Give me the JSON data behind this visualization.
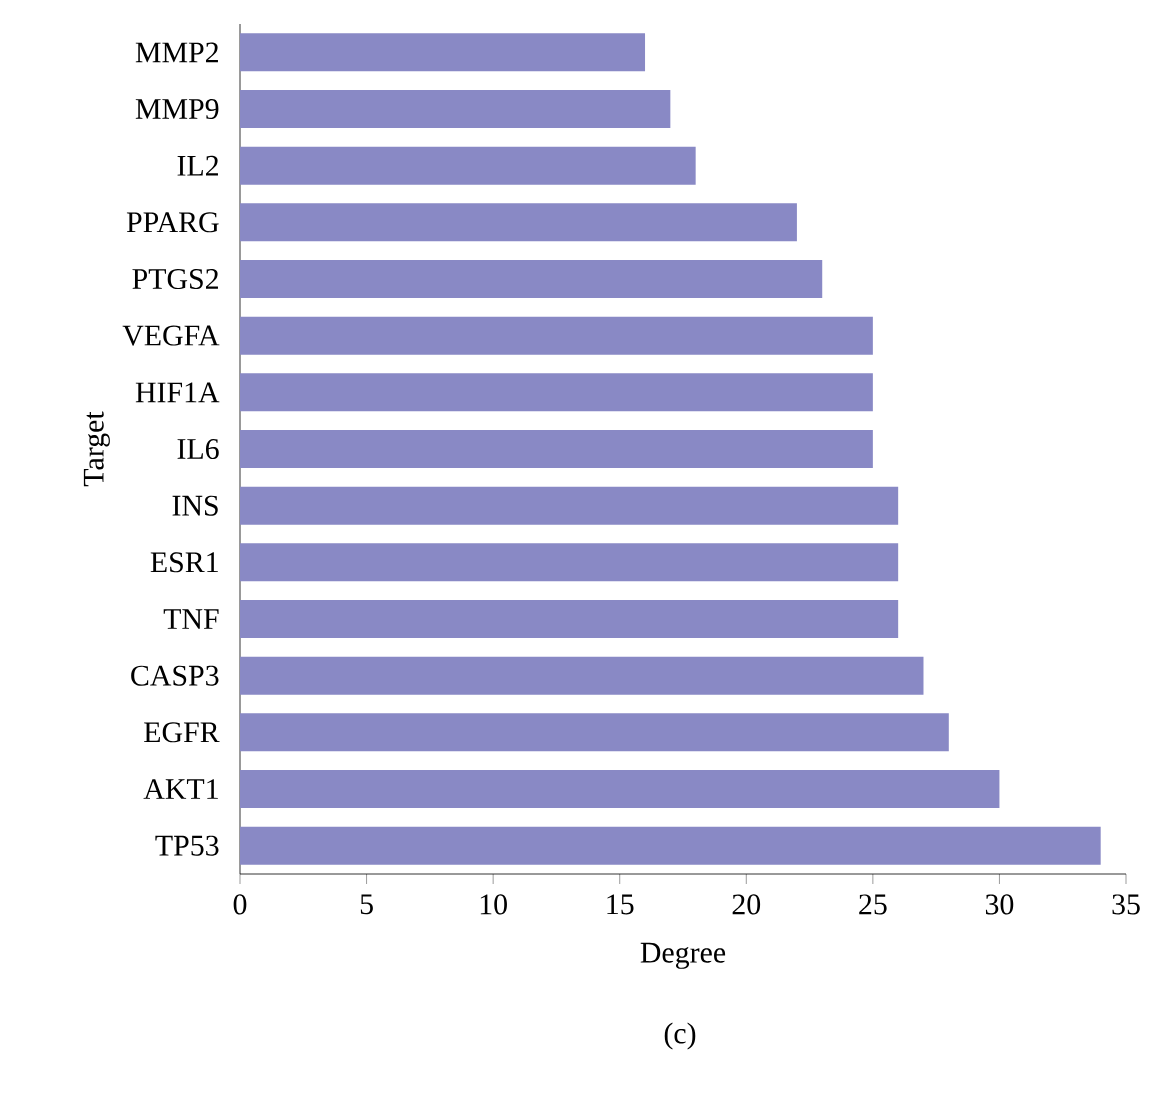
{
  "chart_data": {
    "type": "bar",
    "orientation": "horizontal",
    "categories": [
      "MMP2",
      "MMP9",
      "IL2",
      "PPARG",
      "PTGS2",
      "VEGFA",
      "HIF1A",
      "IL6",
      "INS",
      "ESR1",
      "TNF",
      "CASP3",
      "EGFR",
      "AKT1",
      "TP53"
    ],
    "values": [
      16,
      17,
      18,
      22,
      23,
      25,
      25,
      25,
      26,
      26,
      26,
      27,
      28,
      30,
      34
    ],
    "color": "#8989c5",
    "xlim": [
      0,
      35
    ],
    "xticks": [
      0,
      5,
      10,
      15,
      20,
      25,
      30,
      35
    ],
    "xlabel": "Degree",
    "ylabel": "Target",
    "annotations": [
      "(c)"
    ]
  }
}
